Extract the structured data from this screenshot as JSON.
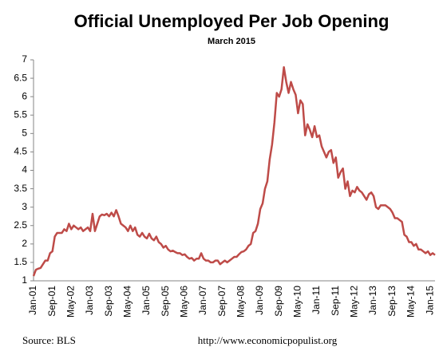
{
  "chart_data": {
    "type": "line",
    "title": "Official Unemployed Per Job Opening",
    "subtitle": "March 2015",
    "source": "Source:  BLS",
    "url": "http://www.economicpopulist.org",
    "categories": [
      "Jan-01",
      null,
      null,
      null,
      null,
      null,
      null,
      null,
      "Sep-01",
      null,
      null,
      null,
      null,
      null,
      null,
      null,
      "May-02",
      null,
      null,
      null,
      null,
      null,
      null,
      null,
      "Jan-03",
      null,
      null,
      null,
      null,
      null,
      null,
      null,
      "Sep-03",
      null,
      null,
      null,
      null,
      null,
      null,
      null,
      "May-04",
      null,
      null,
      null,
      null,
      null,
      null,
      null,
      "Jan-05",
      null,
      null,
      null,
      null,
      null,
      null,
      null,
      "Sep-05",
      null,
      null,
      null,
      null,
      null,
      null,
      null,
      "May-06",
      null,
      null,
      null,
      null,
      null,
      null,
      null,
      "Jan-07",
      null,
      null,
      null,
      null,
      null,
      null,
      null,
      "Sep-07",
      null,
      null,
      null,
      null,
      null,
      null,
      null,
      "May-08",
      null,
      null,
      null,
      null,
      null,
      null,
      null,
      "Jan-09",
      null,
      null,
      null,
      null,
      null,
      null,
      null,
      "Sep-09",
      null,
      null,
      null,
      null,
      null,
      null,
      null,
      "May-10",
      null,
      null,
      null,
      null,
      null,
      null,
      null,
      "Jan-11",
      null,
      null,
      null,
      null,
      null,
      null,
      null,
      "Sep-11",
      null,
      null,
      null,
      null,
      null,
      null,
      null,
      "May-12",
      null,
      null,
      null,
      null,
      null,
      null,
      null,
      "Jan-13",
      null,
      null,
      null,
      null,
      null,
      null,
      null,
      "Sep-13",
      null,
      null,
      null,
      null,
      null,
      null,
      null,
      "May-14",
      null,
      null,
      null,
      null,
      null,
      null,
      null,
      "Jan-15",
      null,
      null
    ],
    "series": [
      {
        "color": "#be4b48",
        "values": [
          1.13,
          1.3,
          1.33,
          1.35,
          1.45,
          1.55,
          1.55,
          1.75,
          1.8,
          2.2,
          2.3,
          2.3,
          2.3,
          2.4,
          2.35,
          2.55,
          2.4,
          2.5,
          2.45,
          2.4,
          2.45,
          2.35,
          2.4,
          2.45,
          2.35,
          2.82,
          2.35,
          2.55,
          2.75,
          2.8,
          2.78,
          2.82,
          2.75,
          2.85,
          2.75,
          2.92,
          2.75,
          2.55,
          2.5,
          2.45,
          2.35,
          2.5,
          2.35,
          2.45,
          2.25,
          2.2,
          2.3,
          2.2,
          2.15,
          2.28,
          2.15,
          2.1,
          2.2,
          2.05,
          2.0,
          1.9,
          1.95,
          1.85,
          1.8,
          1.82,
          1.78,
          1.75,
          1.75,
          1.7,
          1.72,
          1.65,
          1.6,
          1.62,
          1.55,
          1.6,
          1.6,
          1.75,
          1.6,
          1.55,
          1.55,
          1.5,
          1.5,
          1.55,
          1.55,
          1.45,
          1.5,
          1.55,
          1.5,
          1.55,
          1.6,
          1.65,
          1.65,
          1.72,
          1.78,
          1.8,
          1.85,
          1.95,
          2.0,
          2.3,
          2.35,
          2.55,
          2.95,
          3.1,
          3.5,
          3.7,
          4.3,
          4.7,
          5.3,
          6.1,
          6.0,
          6.2,
          6.8,
          6.4,
          6.1,
          6.4,
          6.2,
          6.05,
          5.55,
          5.9,
          5.8,
          4.95,
          5.25,
          5.1,
          4.9,
          5.2,
          4.9,
          4.95,
          4.65,
          4.5,
          4.35,
          4.5,
          4.55,
          4.2,
          4.35,
          3.8,
          3.95,
          4.05,
          3.5,
          3.7,
          3.3,
          3.45,
          3.4,
          3.55,
          3.45,
          3.4,
          3.3,
          3.2,
          3.35,
          3.4,
          3.3,
          3.0,
          2.95,
          3.05,
          3.05,
          3.05,
          3.0,
          2.95,
          2.85,
          2.7,
          2.7,
          2.65,
          2.6,
          2.25,
          2.2,
          2.05,
          2.05,
          1.95,
          2.0,
          1.85,
          1.85,
          1.8,
          1.75,
          1.8,
          1.7,
          1.75,
          1.7
        ]
      }
    ],
    "ylim": [
      1,
      7
    ],
    "yticks": [
      1,
      1.5,
      2,
      2.5,
      3,
      3.5,
      4,
      4.5,
      5,
      5.5,
      6,
      6.5,
      7
    ],
    "grid": false
  }
}
